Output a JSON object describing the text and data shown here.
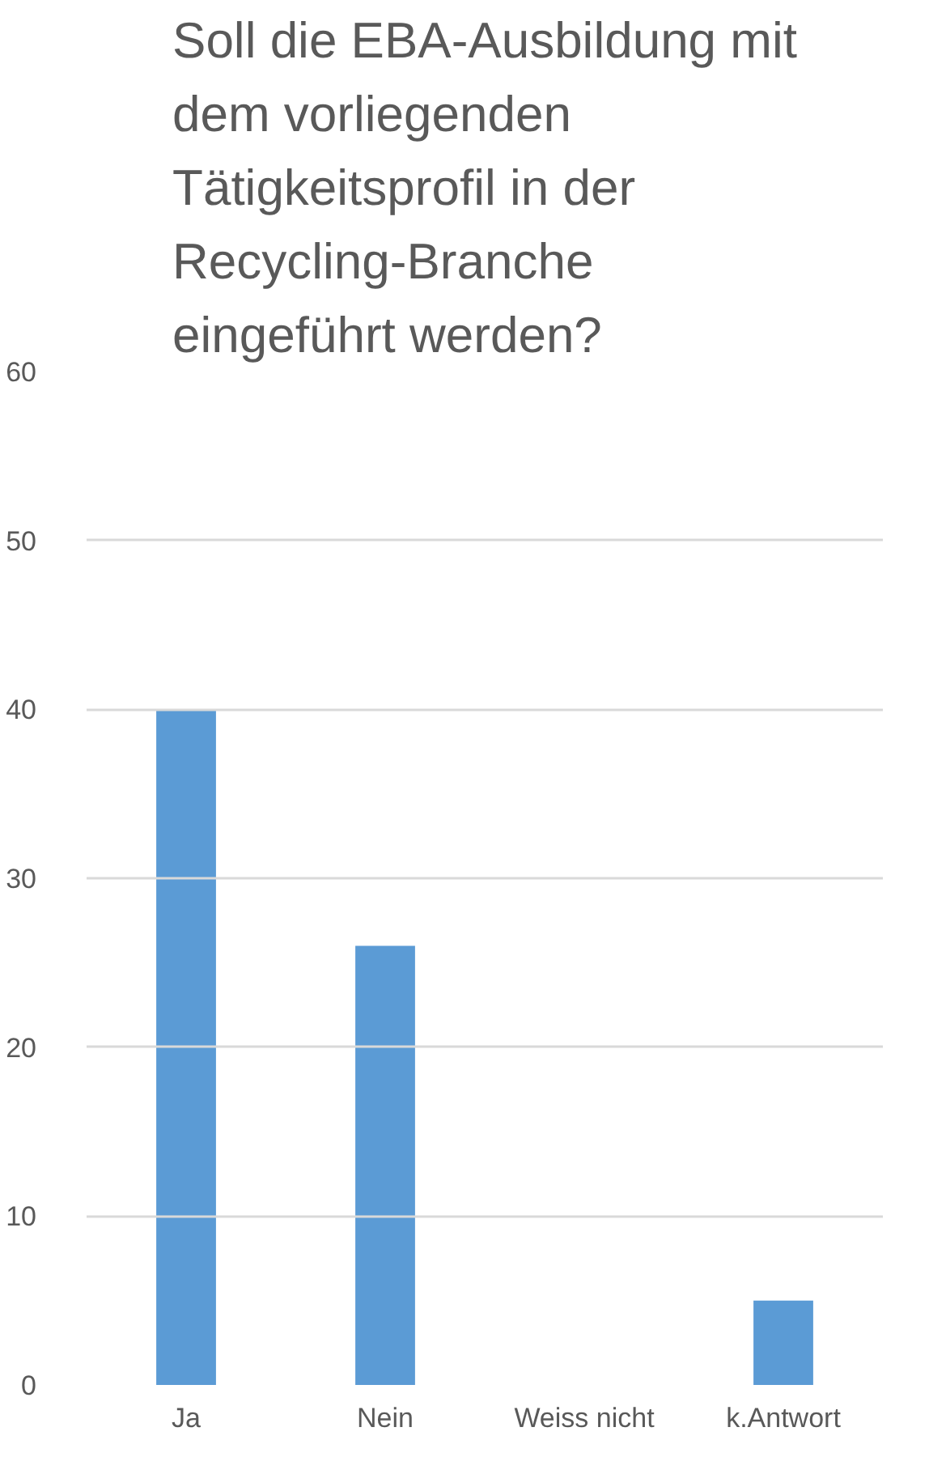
{
  "chart_data": {
    "type": "bar",
    "title": "Soll die EBA-Ausbildung mit dem vorliegenden Tätigkeitsprofil in der Recycling-Branche eingeführt werden?",
    "categories": [
      "Ja",
      "Nein",
      "Weiss nicht",
      "k.Antwort"
    ],
    "values": [
      40,
      26,
      0,
      5
    ],
    "color": "#5b9bd5",
    "ylim": [
      0,
      60
    ],
    "yticks": [
      0,
      10,
      20,
      30,
      40,
      50,
      60
    ],
    "grid": "y"
  }
}
